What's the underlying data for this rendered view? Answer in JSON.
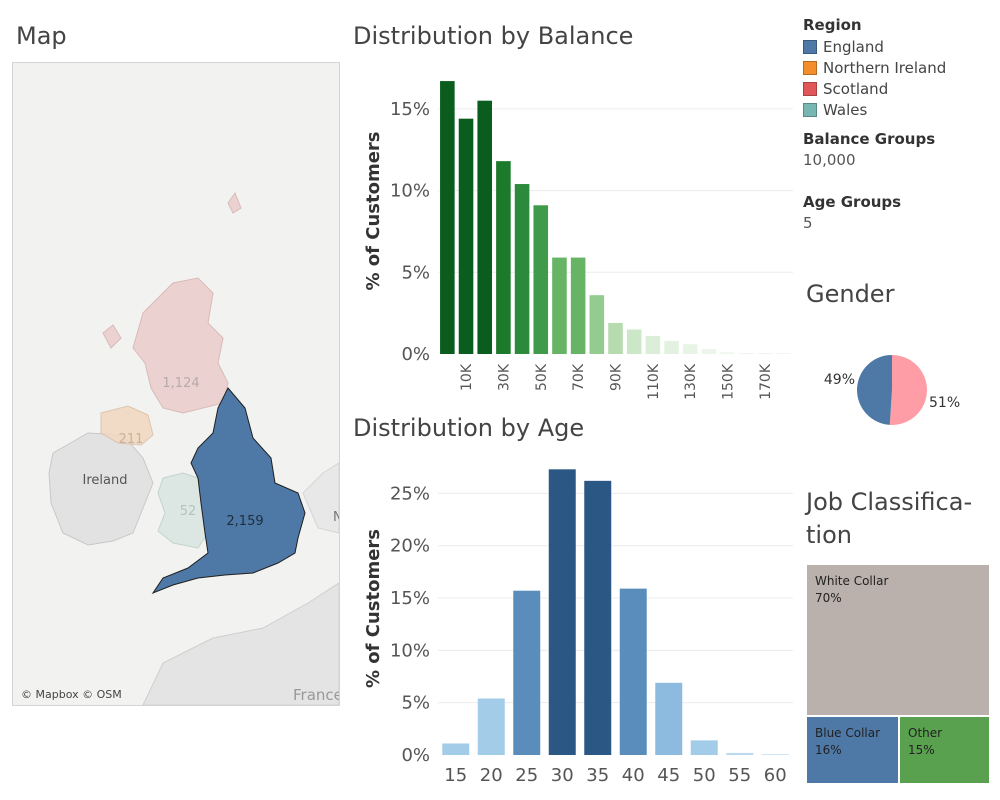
{
  "map": {
    "title": "Map",
    "attribution": "© Mapbox © OSM",
    "labels": {
      "scotland": "1,124",
      "northern_ireland": "211",
      "wales": "52",
      "england": "2,159",
      "ireland": "Ireland",
      "france": "France",
      "edge_n": "N"
    },
    "colors": {
      "england": "#4e79a7",
      "scotland": "#e9c8c7",
      "northern_ireland": "#f2d8bf",
      "wales": "#dae6e3",
      "land": "#e2e2e2",
      "water": "#f2f2f0"
    }
  },
  "legend": {
    "region_title": "Region",
    "regions": [
      {
        "label": "England",
        "color": "#4e79a7"
      },
      {
        "label": "Northern Ireland",
        "color": "#f28e2b"
      },
      {
        "label": "Scotland",
        "color": "#e15759"
      },
      {
        "label": "Wales",
        "color": "#76b7b2"
      }
    ],
    "balance_groups_title": "Balance Groups",
    "balance_groups_value": "10,000",
    "age_groups_title": "Age Groups",
    "age_groups_value": "5"
  },
  "gender": {
    "title": "Gender",
    "left_label": "49%",
    "right_label": "51%"
  },
  "job": {
    "title_line1": "Job Classifica-",
    "title_line2": "tion",
    "cells": [
      {
        "label": "White Collar",
        "value": "70%",
        "color": "#bab0ac"
      },
      {
        "label": "Blue Collar",
        "value": "16%",
        "color": "#4e79a7"
      },
      {
        "label": "Other",
        "value": "15%",
        "color": "#59a14f"
      }
    ]
  },
  "chart_data": [
    {
      "type": "bar",
      "title": "Distribution by Balance",
      "ylabel": "% of Customers",
      "xlabel": "",
      "x": [
        0,
        10,
        20,
        30,
        40,
        50,
        60,
        70,
        80,
        90,
        100,
        110,
        120,
        130,
        140,
        150,
        160,
        170,
        180
      ],
      "tick_labels": [
        "10K",
        "30K",
        "50K",
        "70K",
        "90K",
        "110K",
        "130K",
        "150K",
        "170K"
      ],
      "values": [
        16.7,
        14.4,
        15.5,
        11.8,
        10.4,
        9.1,
        5.9,
        5.9,
        3.6,
        1.9,
        1.5,
        1.1,
        0.8,
        0.6,
        0.3,
        0.1,
        0.05,
        0.05,
        0.05
      ],
      "yticks": [
        "0%",
        "5%",
        "10%",
        "15%"
      ],
      "ylim": [
        0,
        17.5
      ],
      "colors": [
        "#0b5d1e",
        "#0b5d1e",
        "#0b5d1e",
        "#1c7a2b",
        "#2c8a3c",
        "#3f9a4a",
        "#67b466",
        "#67b466",
        "#94cb8f",
        "#b5dbae",
        "#cce7c7",
        "#dbeed7",
        "#e3f2e0",
        "#e8f4e5",
        "#edf6ea",
        "#eef7ec",
        "#eef7ec",
        "#eef7ec",
        "#eef7ec"
      ]
    },
    {
      "type": "bar",
      "title": "Distribution by Age",
      "ylabel": "% of Customers",
      "xlabel": "",
      "categories": [
        "15",
        "20",
        "25",
        "30",
        "35",
        "40",
        "45",
        "50",
        "55",
        "60"
      ],
      "values": [
        1.1,
        5.4,
        15.7,
        27.3,
        26.2,
        15.9,
        6.9,
        1.4,
        0.2,
        0.05
      ],
      "yticks": [
        "0%",
        "5%",
        "10%",
        "15%",
        "20%",
        "25%"
      ],
      "ylim": [
        0,
        28
      ],
      "colors": [
        "#a3cce9",
        "#a3cce9",
        "#5a8dbb",
        "#2a5783",
        "#2a5783",
        "#5a8dbb",
        "#8dbbe0",
        "#a3cce9",
        "#bcd9ee",
        "#cfe3f2"
      ]
    },
    {
      "type": "pie",
      "title": "Gender",
      "values": [
        49,
        51
      ],
      "colors": [
        "#4e79a7",
        "#ff9da7"
      ]
    }
  ]
}
